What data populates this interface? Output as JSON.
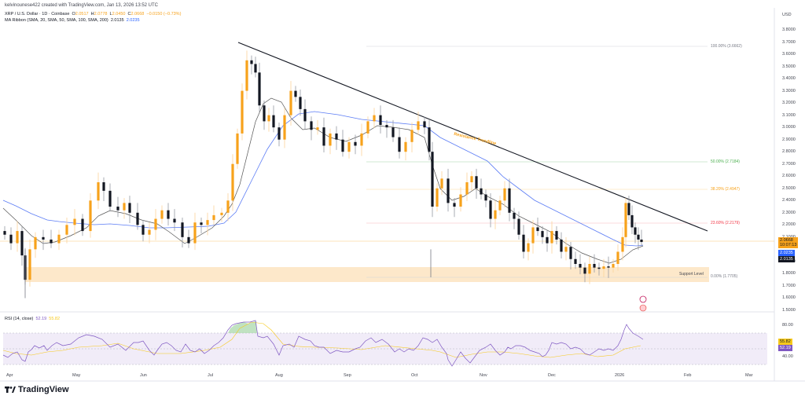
{
  "credit": "kelvinounese422 created with TradingView.com, Jan 13, 2026 13:52 UTC",
  "legend": {
    "symbol": "XRP / U.S. Dollar · 1D · Coinbase",
    "open_label": "O",
    "open": "2.0517",
    "high_label": "H",
    "high": "2.0778",
    "low_label": "L",
    "low": "2.0450",
    "close_label": "C",
    "close": "2.0668",
    "change": "−0.0150 (−0.73%)",
    "ma_label": "MA Ribbon (SMA, 20, SMA, 50, SMA, 100, SMA, 200)",
    "ma_value_1": "2.0135",
    "ma_value_2": "2.0235"
  },
  "rsi_legend": {
    "label": "RSI (14, close)",
    "rsi": "52.19",
    "rsi_ma": "55.82"
  },
  "axis": {
    "currency": "USD",
    "price_ticks": [
      "3.8000",
      "3.7000",
      "3.6000",
      "3.5000",
      "3.4000",
      "3.3000",
      "3.2000",
      "3.1000",
      "3.0000",
      "2.9000",
      "2.8000",
      "2.7000",
      "2.6000",
      "2.5000",
      "2.4000",
      "2.3000",
      "2.2000",
      "2.1000",
      "1.9000",
      "1.8000",
      "1.7000",
      "1.6000",
      "1.5000"
    ],
    "rsi_ticks": [
      "80.00",
      "40.00"
    ],
    "months": [
      "Apr",
      "May",
      "Jun",
      "Jul",
      "Aug",
      "Sep",
      "Oct",
      "Nov",
      "Dec",
      "2026",
      "Feb",
      "Mar"
    ]
  },
  "badges": {
    "last_price": "2.0668",
    "countdown": "10:07:13",
    "ma_blue": "2.0235",
    "ma_black": "2.0135",
    "rsi_ma": "55.82",
    "rsi": "52.19"
  },
  "annotations": {
    "trendline": "Resistance Trendline",
    "support": "Support Level",
    "fib": [
      {
        "label": "100.00% (3.6662)",
        "price": 3.6662,
        "color": "#b2b5be"
      },
      {
        "label": "50.00% (2.7184)",
        "price": 2.7184,
        "color": "#4caf50"
      },
      {
        "label": "38.20% (2.4947)",
        "price": 2.4947,
        "color": "#f7a21b"
      },
      {
        "label": "23.60% (2.2179)",
        "price": 2.2179,
        "color": "#f23645"
      },
      {
        "label": "0.00% (1.7705)",
        "price": 1.7705,
        "color": "#787b86"
      }
    ]
  },
  "brand": "TradingView",
  "colors": {
    "up": "#f7a21b",
    "down": "#131722",
    "ma20": "#131722",
    "ma50": "#2962ff",
    "rsi": "#7e57c2",
    "rsi_ma": "#f7c91b",
    "support_zone": "#fde5c4"
  },
  "chart_data": {
    "type": "candlestick",
    "title": "XRP / U.S. Dollar · 1D · Coinbase",
    "xlabel": "",
    "ylabel": "USD",
    "ylim": [
      1.5,
      3.8
    ],
    "x_ticks": [
      "Apr",
      "May",
      "Jun",
      "Jul",
      "Aug",
      "Sep",
      "Oct",
      "Nov",
      "Dec",
      "2026",
      "Feb",
      "Mar"
    ],
    "last": {
      "open": 2.0517,
      "high": 2.0778,
      "low": 2.045,
      "close": 2.0668,
      "change": -0.015,
      "change_pct": -0.73
    },
    "price_path": [
      {
        "x": "Apr",
        "price": 2.1
      },
      {
        "x": "Apr-mid",
        "price": 1.9
      },
      {
        "x": "May",
        "price": 2.25
      },
      {
        "x": "May-mid",
        "price": 2.4
      },
      {
        "x": "Jun",
        "price": 2.2
      },
      {
        "x": "Jun-mid",
        "price": 2.05
      },
      {
        "x": "Jul",
        "price": 2.3
      },
      {
        "x": "Jul-mid",
        "price": 3.55
      },
      {
        "x": "Aug",
        "price": 3.1
      },
      {
        "x": "Aug-mid",
        "price": 3.3
      },
      {
        "x": "Sep",
        "price": 2.95
      },
      {
        "x": "Sep-mid",
        "price": 3.0
      },
      {
        "x": "Oct",
        "price": 2.95
      },
      {
        "x": "Oct-10",
        "price": 2.4
      },
      {
        "x": "Oct-mid",
        "price": 2.5
      },
      {
        "x": "Nov",
        "price": 2.45
      },
      {
        "x": "Nov-mid",
        "price": 2.25
      },
      {
        "x": "Dec",
        "price": 2.1
      },
      {
        "x": "Dec-mid",
        "price": 1.9
      },
      {
        "x": "2026",
        "price": 1.88
      },
      {
        "x": "Jan-06",
        "price": 2.38
      },
      {
        "x": "Jan-13",
        "price": 2.0668
      }
    ],
    "indicators": {
      "ma_ribbon": {
        "sma20": 2.0135,
        "sma50": 2.0235
      },
      "rsi14": 52.19,
      "rsi_ma": 55.82,
      "rsi_bands": [
        70,
        50,
        30
      ]
    },
    "fibonacci": [
      {
        "level": "100.00%",
        "price": 3.6662
      },
      {
        "level": "50.00%",
        "price": 2.7184
      },
      {
        "level": "38.20%",
        "price": 2.4947
      },
      {
        "level": "23.60%",
        "price": 2.2179
      },
      {
        "level": "0.00%",
        "price": 1.7705
      }
    ],
    "resistance_trendline": {
      "from": {
        "x": "Jul-mid",
        "price": 3.69
      },
      "to": {
        "x": "Feb-mid",
        "price": 2.18
      }
    },
    "support_zone": [
      1.73,
      1.84
    ],
    "legend_position": "top-left"
  }
}
